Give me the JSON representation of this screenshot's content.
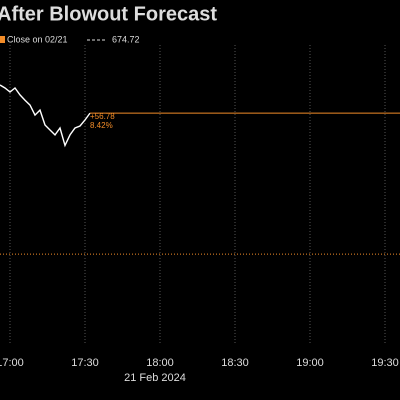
{
  "chart_data": {
    "type": "line",
    "title": "After Blowout Forecast",
    "x": [
      "16:56",
      "16:58",
      "17:00",
      "17:02",
      "17:04",
      "17:06",
      "17:08",
      "17:10",
      "17:12",
      "17:14",
      "17:16",
      "17:18",
      "17:20",
      "17:22",
      "17:24",
      "17:26",
      "17:28",
      "17:30",
      "17:32"
    ],
    "series": [
      {
        "name": "Close on 02/21",
        "color": "#ffffff",
        "values": [
          742.8,
          741.6,
          740.0,
          741.6,
          738.8,
          736.7,
          734.7,
          730.7,
          732.7,
          726.7,
          724.7,
          722.7,
          725.5,
          718.5,
          722.7,
          725.5,
          726.3,
          728.7,
          731.5
        ]
      }
    ],
    "reference": {
      "label": "Close on 02/21",
      "value": 674.72,
      "color": "#f28c28"
    },
    "annotations": [
      {
        "value": 56.78,
        "label": "+56.78"
      },
      {
        "value": 8.42,
        "label": "8.42%"
      }
    ],
    "xlim": [
      "16:56",
      "19:36"
    ],
    "xticks": [
      "17:00",
      "17:30",
      "18:00",
      "18:30",
      "19:00",
      "19:30"
    ],
    "date_label": "21 Feb 2024",
    "ylim": [
      638.1,
      756.9
    ],
    "grid": true
  }
}
